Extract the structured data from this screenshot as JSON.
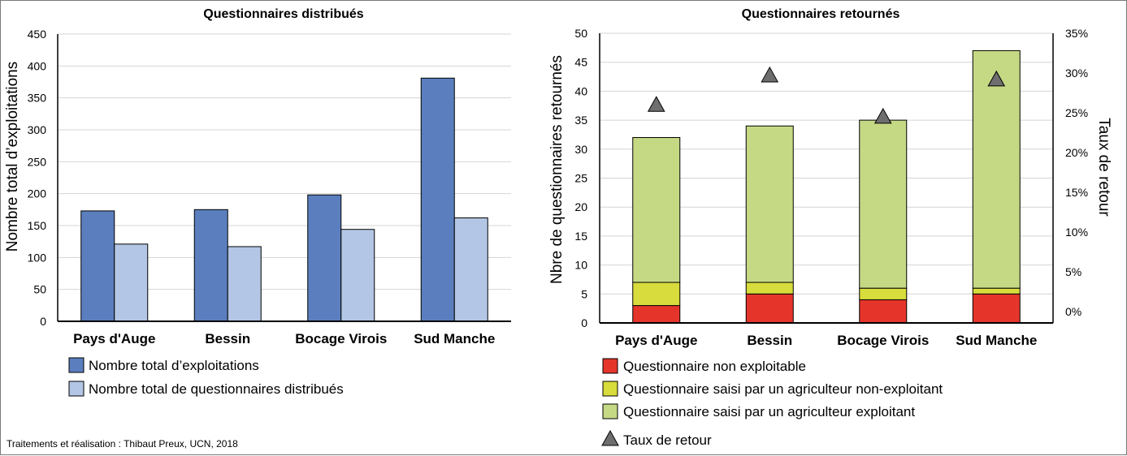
{
  "chart_data": [
    {
      "type": "bar",
      "title": "Questionnaires distribués",
      "xlabel": "",
      "ylabel": "Nombre total d’exploitations",
      "ylim": [
        0,
        450
      ],
      "yticks": [
        "0",
        "50",
        "100",
        "150",
        "200",
        "250",
        "300",
        "350",
        "400",
        "450"
      ],
      "grid": true,
      "legend_position": "bottom",
      "categories": [
        "Pays d'Auge",
        "Bessin",
        "Bocage Virois",
        "Sud Manche"
      ],
      "series": [
        {
          "name": "Nombre total d’exploitations",
          "color": "#5b7fbe",
          "values": [
            173,
            175,
            198,
            381
          ]
        },
        {
          "name": "Nombre total de questionnaires distribués",
          "color": "#b3c6e5",
          "values": [
            121,
            117,
            144,
            162
          ]
        }
      ]
    },
    {
      "type": "bar",
      "stacked": true,
      "title": "Questionnaires retournés",
      "xlabel": "",
      "ylabel": "Nbre de questionnaires retournés",
      "y2label": "Taux de retour",
      "ylim": [
        0,
        50
      ],
      "y2lim": [
        0,
        35
      ],
      "yticks": [
        "0",
        "5",
        "10",
        "15",
        "20",
        "25",
        "30",
        "35",
        "40",
        "45",
        "50"
      ],
      "y2ticks": [
        "0%",
        "5%",
        "10%",
        "15%",
        "20%",
        "25%",
        "30%",
        "35%"
      ],
      "grid": true,
      "legend_position": "bottom",
      "categories": [
        "Pays d'Auge",
        "Bessin",
        "Bocage Virois",
        "Sud Manche"
      ],
      "series": [
        {
          "name": "Questionnaire non exploitable",
          "color": "#e5352b",
          "values": [
            3,
            5,
            4,
            5
          ]
        },
        {
          "name": "Questionnaire saisi par un agriculteur non-exploitant",
          "color": "#d8dc3c",
          "values": [
            4,
            2,
            2,
            1
          ]
        },
        {
          "name": "Questionnaire saisi par un agriculteur exploitant",
          "color": "#c5d985",
          "values": [
            25,
            27,
            29,
            41
          ]
        }
      ],
      "rate_series": {
        "name": "Taux de retour",
        "color": "#6e6e6e",
        "values": [
          26,
          29.7,
          24.5,
          29.2
        ]
      }
    }
  ],
  "credit": "Traitements et réalisation : Thibaut Preux, UCN, 2018"
}
